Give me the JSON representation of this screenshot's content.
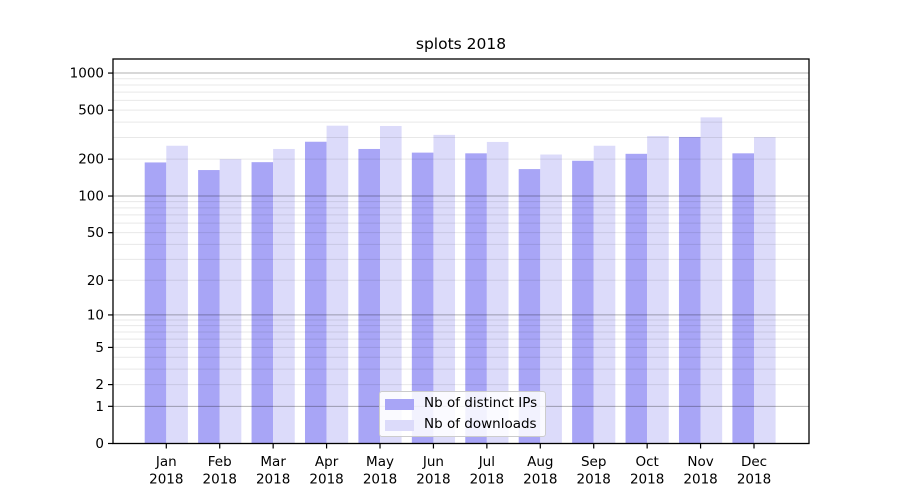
{
  "chart_data": {
    "type": "bar",
    "title": "splots 2018",
    "categories": [
      "Jan",
      "Feb",
      "Mar",
      "Apr",
      "May",
      "Jun",
      "Jul",
      "Aug",
      "Sep",
      "Oct",
      "Nov",
      "Dec"
    ],
    "category_year": "2018",
    "series": [
      {
        "name": "Nb of distinct IPs",
        "color": "#a8a5f6",
        "values": [
          188,
          163,
          189,
          277,
          242,
          226,
          223,
          166,
          194,
          221,
          303,
          223
        ]
      },
      {
        "name": "Nb of downloads",
        "color": "#dcdbfa",
        "values": [
          257,
          200,
          242,
          374,
          372,
          315,
          276,
          218,
          257,
          308,
          437,
          302
        ]
      }
    ],
    "yscale": "log1p",
    "yticks": [
      0,
      1,
      2,
      5,
      10,
      20,
      50,
      100,
      200,
      500,
      1000
    ],
    "ylim": [
      0,
      1300
    ],
    "grid": {
      "major_color": "rgba(0,0,0,0.30)",
      "minor_color": "rgba(0,0,0,0.09)"
    },
    "legend_position": "lower center",
    "axis_color": "#000000"
  }
}
